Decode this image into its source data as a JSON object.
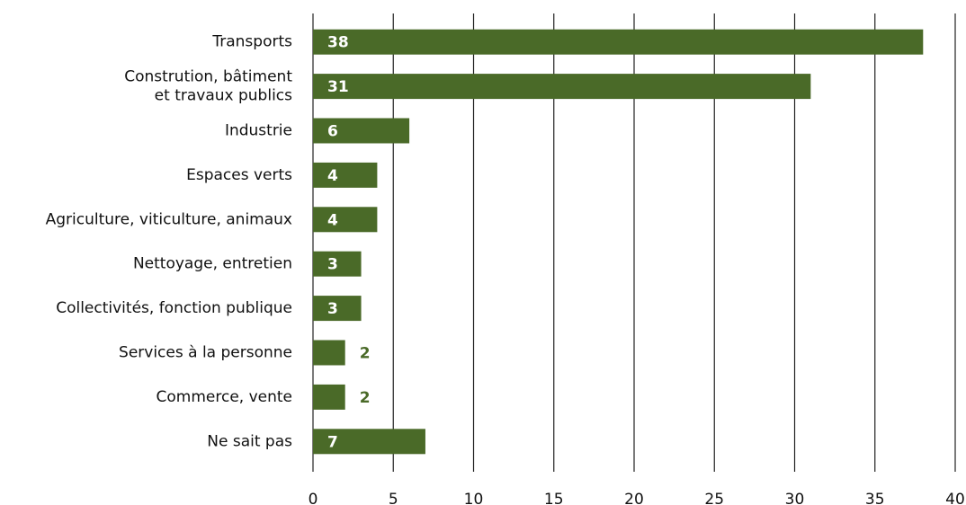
{
  "chart_data": {
    "type": "hbar",
    "categories": [
      "Transports",
      "Constrution, bâtiment\net travaux publics",
      "Industrie",
      "Espaces verts",
      "Agriculture, viticulture, animaux",
      "Nettoyage, entretien",
      "Collectivités, fonction publique",
      "Services à la personne",
      "Commerce, vente",
      "Ne sait pas"
    ],
    "values": [
      38,
      31,
      6,
      4,
      4,
      3,
      3,
      2,
      2,
      7
    ],
    "color": "#4a6a28",
    "xlim": [
      0,
      40
    ],
    "xticks": [
      0,
      5,
      10,
      15,
      20,
      25,
      30,
      35,
      40
    ],
    "grid": true
  }
}
